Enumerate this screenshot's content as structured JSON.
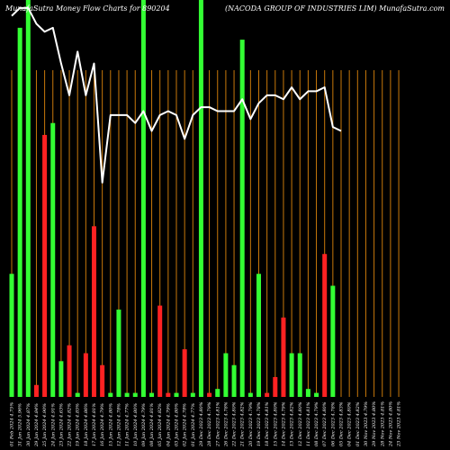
{
  "chart_data": {
    "type": "bar",
    "title_left": "MunafaSutra  Money Flow  Charts for 890204",
    "title_right": "(NACODA GROUP OF INDUSTRIES LIM) MunafaSutra.com",
    "xlabel": "",
    "ylabel": "",
    "ylim": [
      0,
      100
    ],
    "background": "#000000",
    "colors": {
      "up": "#33ff33",
      "down": "#ff2222",
      "line": "#ffffff",
      "grid": "#c8780a"
    },
    "categories": [
      "01 Feb 2024 4.75%",
      "31 Jan 2024 5.96%",
      "30 Jan 2024 4.87%",
      "29 Jan 2024 4.84%",
      "25 Jan 2024 4.90%",
      "24 Jan 2024 4.91%",
      "23 Jan 2024 4.63%",
      "22 Jan 2024 4.82%",
      "19 Jan 2024 4.85%",
      "18 Jan 2024 4.86%",
      "17 Jan 2024 4.81%",
      "16 Jan 2024 4.79%",
      "15 Jan 2024 4.80%",
      "12 Jan 2024 4.78%",
      "11 Jan 2024 4.77%",
      "10 Jan 2024 4.80%",
      "09 Jan 2024 4.79%",
      "08 Jan 2024 4.81%",
      "05 Jan 2024 4.82%",
      "04 Jan 2024 4.79%",
      "03 Jan 2024 4.80%",
      "02 Jan 2024 4.78%",
      "01 Jan 2024 4.77%",
      "29 Dec 2023 4.80%",
      "28 Dec 2023 4.79%",
      "27 Dec 2023 4.81%",
      "26 Dec 2023 4.78%",
      "22 Dec 2023 4.80%",
      "21 Dec 2023 4.82%",
      "20 Dec 2023 4.79%",
      "19 Dec 2023 4.78%",
      "18 Dec 2023 4.81%",
      "15 Dec 2023 4.80%",
      "14 Dec 2023 4.79%",
      "13 Dec 2023 4.82%",
      "12 Dec 2023 4.80%",
      "11 Dec 2023 4.81%",
      "08 Dec 2023 4.79%",
      "07 Dec 2023 4.80%",
      "06 Dec 2023 4.78%",
      "05 Dec 2023 4.83%",
      "04 Dec 2023 4.80%",
      "01 Dec 2023 4.82%",
      "30 Nov 2023 4.79%",
      "29 Nov 2023 4.80%",
      "28 Nov 2023 4.81%",
      "24 Nov 2023 4.80%",
      "23 Nov 2023 4.81%"
    ],
    "bar_values": [
      31,
      93,
      100,
      3,
      66,
      69,
      9,
      13,
      1,
      11,
      43,
      8,
      1,
      22,
      1,
      1,
      100,
      1,
      23,
      1,
      1,
      12,
      1,
      100,
      1,
      2,
      11,
      8,
      90,
      1,
      31,
      1,
      5,
      20,
      11,
      11,
      2,
      1,
      36,
      28,
      0,
      0,
      0,
      0,
      0,
      0,
      0,
      0
    ],
    "bar_colors": [
      "up",
      "up",
      "up",
      "down",
      "down",
      "up",
      "up",
      "down",
      "up",
      "down",
      "down",
      "down",
      "up",
      "up",
      "up",
      "up",
      "up",
      "up",
      "down",
      "down",
      "up",
      "down",
      "up",
      "up",
      "down",
      "up",
      "up",
      "up",
      "up",
      "up",
      "up",
      "down",
      "down",
      "down",
      "up",
      "up",
      "up",
      "up",
      "down",
      "up",
      "up",
      "up",
      "up",
      "up",
      "up",
      "up",
      "up",
      "up"
    ],
    "line_values": [
      96,
      98,
      98,
      94,
      92,
      93,
      84,
      76,
      87,
      76,
      84,
      54,
      71,
      71,
      71,
      69,
      72,
      67,
      71,
      72,
      71,
      65,
      71,
      73,
      73,
      72,
      72,
      72,
      75,
      70,
      74,
      76,
      76,
      75,
      78,
      75,
      77,
      77,
      78,
      68,
      67
    ]
  }
}
